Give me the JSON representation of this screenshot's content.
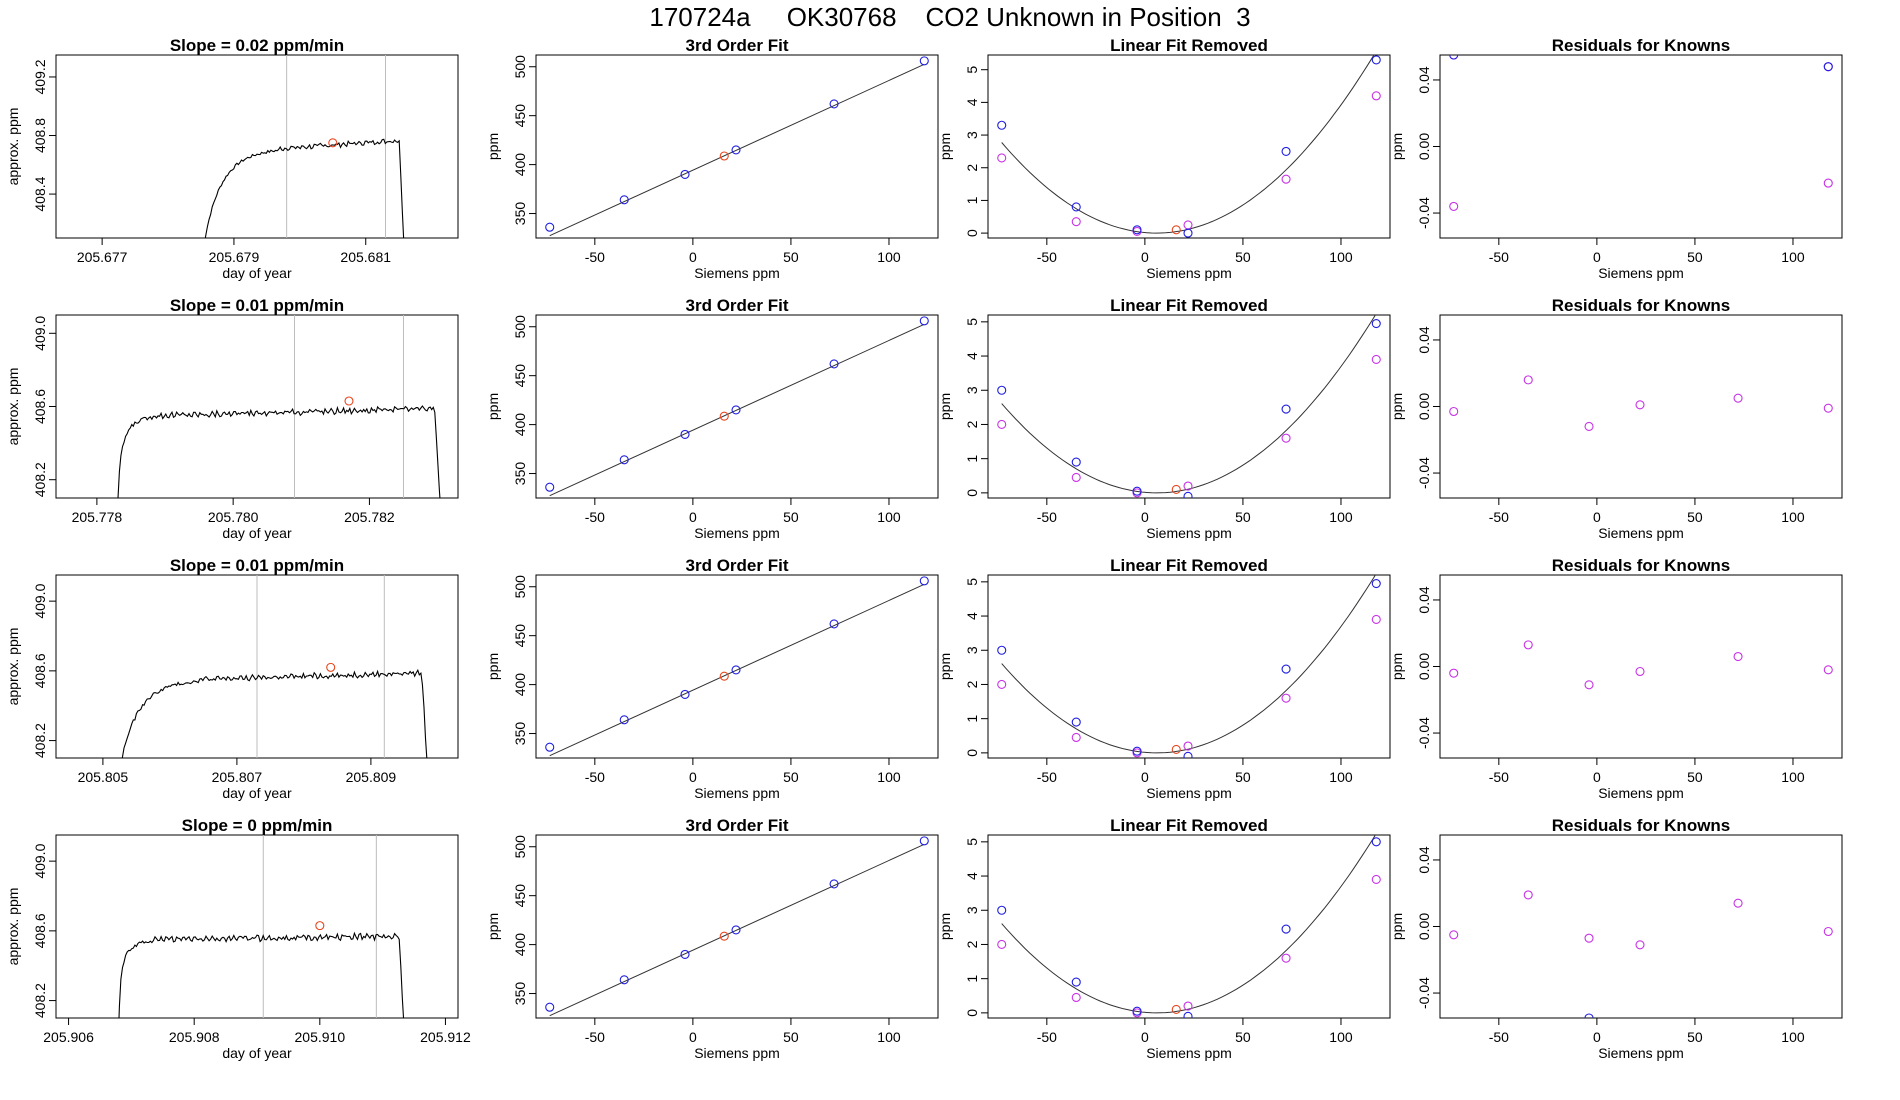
{
  "header": {
    "title": "170724a     OK30768    CO2 Unknown in Position  3"
  },
  "colors": {
    "axis": "#000000",
    "line": "#000000",
    "gridline": "#bdbdbd",
    "unknown_point": "#e8461e",
    "known_point": "#1f1fe0",
    "residual_point": "#c832e6",
    "fit_line": "#333333"
  },
  "chart_data": [
    {
      "type": "line",
      "row": 0,
      "col": 0,
      "title": "Slope =  0.02  ppm/min",
      "xlabel": "day of year",
      "ylabel": "approx. ppm",
      "xlim": [
        205.6763,
        205.6824
      ],
      "ylim": [
        408.1,
        409.35
      ],
      "xticks": [
        205.677,
        205.679,
        205.681
      ],
      "xtick_labels": [
        "205.677",
        "205.679",
        "205.681"
      ],
      "yticks": [
        408.4,
        408.8,
        409.2
      ],
      "ytick_labels": [
        "408.4",
        "408.8",
        "409.2"
      ],
      "vlines": [
        205.6798,
        205.6813
      ],
      "trace": {
        "start_x": 205.6785,
        "plateau_x": 205.6797,
        "end_x": 205.6816,
        "base": 408.1,
        "plateau": 408.76,
        "slope_total": 0.06,
        "rise_shape": 0.9
      },
      "marker": {
        "x": 205.6805,
        "y": 408.75
      }
    },
    {
      "type": "scatter",
      "row": 0,
      "col": 1,
      "title": "3rd Order Fit",
      "xlabel": "Siemens ppm",
      "ylabel": "ppm",
      "xlim": [
        -80,
        125
      ],
      "ylim": [
        325,
        512
      ],
      "xticks": [
        -50,
        0,
        50,
        100
      ],
      "xtick_labels": [
        "-50",
        "0",
        "50",
        "100"
      ],
      "yticks": [
        350,
        400,
        450,
        500
      ],
      "ytick_labels": [
        "350",
        "400",
        "450",
        "500"
      ],
      "fit_line": {
        "slope": 0.9167,
        "intercept": 394.3
      },
      "knowns": [
        [
          -73,
          336
        ],
        [
          -35,
          364
        ],
        [
          -4,
          390
        ],
        [
          22,
          415
        ],
        [
          72,
          462
        ],
        [
          118,
          506
        ]
      ],
      "unknown": [
        16,
        408.8
      ]
    },
    {
      "type": "scatter",
      "row": 0,
      "col": 2,
      "title": "Linear Fit Removed",
      "xlabel": "Siemens ppm",
      "ylabel": "ppm",
      "xlim": [
        -80,
        125
      ],
      "ylim": [
        -0.15,
        5.45
      ],
      "xticks": [
        -50,
        0,
        50,
        100
      ],
      "xtick_labels": [
        "-50",
        "0",
        "50",
        "100"
      ],
      "yticks": [
        0,
        1,
        2,
        3,
        4,
        5
      ],
      "ytick_labels": [
        "0",
        "1",
        "2",
        "3",
        "4",
        "5"
      ],
      "curve": {
        "a": 0.000444,
        "h": 6,
        "k": 0,
        "x0": -73,
        "x1": 118
      },
      "knowns": [
        [
          -73,
          3.3
        ],
        [
          -35,
          0.8
        ],
        [
          -4,
          0.1
        ],
        [
          22,
          0.0
        ],
        [
          72,
          2.5
        ],
        [
          118,
          5.3
        ]
      ],
      "knowns_magenta": [
        [
          -73,
          2.3
        ],
        [
          -35,
          0.35
        ],
        [
          -4,
          0.05
        ],
        [
          22,
          0.25
        ],
        [
          72,
          1.65
        ],
        [
          118,
          4.2
        ]
      ],
      "unknown": [
        16,
        0.1
      ]
    },
    {
      "type": "scatter",
      "row": 0,
      "col": 3,
      "title": "Residuals for Knowns",
      "xlabel": "Siemens ppm",
      "ylabel": "ppm",
      "xlim": [
        -80,
        125
      ],
      "ylim": [
        -0.055,
        0.055
      ],
      "xticks": [
        -50,
        0,
        50,
        100
      ],
      "xtick_labels": [
        "-50",
        "0",
        "50",
        "100"
      ],
      "yticks": [
        -0.04,
        0.0,
        0.04
      ],
      "ytick_labels": [
        "-0.04",
        "0.00",
        "0.04"
      ],
      "points": [
        [
          -73,
          0.055
        ],
        [
          -73,
          -0.036
        ],
        [
          118,
          0.048
        ],
        [
          118,
          -0.022
        ]
      ],
      "blue_points": [
        [
          -73,
          0.055
        ],
        [
          118,
          0.048
        ]
      ]
    },
    {
      "type": "line",
      "row": 1,
      "col": 0,
      "title": "Slope =  0.01  ppm/min",
      "xlabel": "day of year",
      "ylabel": "approx. ppm",
      "xlim": [
        205.7774,
        205.7833
      ],
      "ylim": [
        408.1,
        409.1
      ],
      "xticks": [
        205.778,
        205.78,
        205.782
      ],
      "xtick_labels": [
        "205.778",
        "205.780",
        "205.782"
      ],
      "yticks": [
        408.2,
        408.6,
        409.0
      ],
      "ytick_labels": [
        "408.2",
        "408.6",
        "409.0"
      ],
      "vlines": [
        205.7809,
        205.7825
      ],
      "trace": {
        "start_x": 205.7783,
        "plateau_x": 205.7788,
        "end_x": 205.7831,
        "base": 408.1,
        "plateau": 408.6,
        "slope_total": 0.04,
        "rise_shape": 0.6
      },
      "marker": {
        "x": 205.7817,
        "y": 408.63
      }
    },
    {
      "type": "scatter",
      "row": 1,
      "col": 1,
      "title": "3rd Order Fit",
      "xlabel": "Siemens ppm",
      "ylabel": "ppm",
      "xlim": [
        -80,
        125
      ],
      "ylim": [
        325,
        512
      ],
      "xticks": [
        -50,
        0,
        50,
        100
      ],
      "xtick_labels": [
        "-50",
        "0",
        "50",
        "100"
      ],
      "yticks": [
        350,
        400,
        450,
        500
      ],
      "ytick_labels": [
        "350",
        "400",
        "450",
        "500"
      ],
      "fit_line": {
        "slope": 0.9167,
        "intercept": 394.3
      },
      "knowns": [
        [
          -73,
          336
        ],
        [
          -35,
          364
        ],
        [
          -4,
          390
        ],
        [
          22,
          415
        ],
        [
          72,
          462
        ],
        [
          118,
          506
        ]
      ],
      "unknown": [
        16,
        408.6
      ]
    },
    {
      "type": "scatter",
      "row": 1,
      "col": 2,
      "title": "Linear Fit Removed",
      "xlabel": "Siemens ppm",
      "ylabel": "ppm",
      "xlim": [
        -80,
        125
      ],
      "ylim": [
        -0.15,
        5.2
      ],
      "xticks": [
        -50,
        0,
        50,
        100
      ],
      "xtick_labels": [
        "-50",
        "0",
        "50",
        "100"
      ],
      "yticks": [
        0,
        1,
        2,
        3,
        4,
        5
      ],
      "ytick_labels": [
        "0",
        "1",
        "2",
        "3",
        "4",
        "5"
      ],
      "curve": {
        "a": 0.000418,
        "h": 6,
        "k": 0,
        "x0": -73,
        "x1": 118
      },
      "knowns": [
        [
          -73,
          3.0
        ],
        [
          -35,
          0.9
        ],
        [
          -4,
          0.05
        ],
        [
          22,
          -0.1
        ],
        [
          72,
          2.45
        ],
        [
          118,
          4.95
        ]
      ],
      "knowns_magenta": [
        [
          -73,
          2.0
        ],
        [
          -35,
          0.45
        ],
        [
          -4,
          0.0
        ],
        [
          22,
          0.2
        ],
        [
          72,
          1.6
        ],
        [
          118,
          3.9
        ]
      ],
      "unknown": [
        16,
        0.1
      ]
    },
    {
      "type": "scatter",
      "row": 1,
      "col": 3,
      "title": "Residuals for Knowns",
      "xlabel": "Siemens ppm",
      "ylabel": "ppm",
      "xlim": [
        -80,
        125
      ],
      "ylim": [
        -0.055,
        0.055
      ],
      "xticks": [
        -50,
        0,
        50,
        100
      ],
      "xtick_labels": [
        "-50",
        "0",
        "50",
        "100"
      ],
      "yticks": [
        -0.04,
        0.0,
        0.04
      ],
      "ytick_labels": [
        "-0.04",
        "0.00",
        "0.04"
      ],
      "points": [
        [
          -73,
          -0.003
        ],
        [
          -35,
          0.016
        ],
        [
          -4,
          -0.012
        ],
        [
          22,
          0.001
        ],
        [
          72,
          0.005
        ],
        [
          118,
          -0.001
        ]
      ],
      "blue_points": []
    },
    {
      "type": "line",
      "row": 2,
      "col": 0,
      "title": "Slope =  0.01  ppm/min",
      "xlabel": "day of year",
      "ylabel": "approx. ppm",
      "xlim": [
        205.8043,
        205.8103
      ],
      "ylim": [
        408.1,
        409.15
      ],
      "xticks": [
        205.805,
        205.807,
        205.809
      ],
      "xtick_labels": [
        "205.805",
        "205.807",
        "205.809"
      ],
      "yticks": [
        408.2,
        408.6,
        409.0
      ],
      "ytick_labels": [
        "408.2",
        "408.6",
        "409.0"
      ],
      "vlines": [
        205.8073,
        205.8092
      ],
      "trace": {
        "start_x": 205.8052,
        "plateau_x": 205.8064,
        "end_x": 205.8099,
        "base": 408.1,
        "plateau": 408.6,
        "slope_total": 0.04,
        "rise_shape": 0.9
      },
      "marker": {
        "x": 205.8084,
        "y": 408.62
      }
    },
    {
      "type": "scatter",
      "row": 2,
      "col": 1,
      "title": "3rd Order Fit",
      "xlabel": "Siemens ppm",
      "ylabel": "ppm",
      "xlim": [
        -80,
        125
      ],
      "ylim": [
        325,
        512
      ],
      "xticks": [
        -50,
        0,
        50,
        100
      ],
      "xtick_labels": [
        "-50",
        "0",
        "50",
        "100"
      ],
      "yticks": [
        350,
        400,
        450,
        500
      ],
      "ytick_labels": [
        "350",
        "400",
        "450",
        "500"
      ],
      "fit_line": {
        "slope": 0.9167,
        "intercept": 394.3
      },
      "knowns": [
        [
          -73,
          336
        ],
        [
          -35,
          364
        ],
        [
          -4,
          390
        ],
        [
          22,
          415
        ],
        [
          72,
          462
        ],
        [
          118,
          506
        ]
      ],
      "unknown": [
        16,
        408.6
      ]
    },
    {
      "type": "scatter",
      "row": 2,
      "col": 2,
      "title": "Linear Fit Removed",
      "xlabel": "Siemens ppm",
      "ylabel": "ppm",
      "xlim": [
        -80,
        125
      ],
      "ylim": [
        -0.15,
        5.2
      ],
      "xticks": [
        -50,
        0,
        50,
        100
      ],
      "xtick_labels": [
        "-50",
        "0",
        "50",
        "100"
      ],
      "yticks": [
        0,
        1,
        2,
        3,
        4,
        5
      ],
      "ytick_labels": [
        "0",
        "1",
        "2",
        "3",
        "4",
        "5"
      ],
      "curve": {
        "a": 0.000418,
        "h": 6,
        "k": 0,
        "x0": -73,
        "x1": 118
      },
      "knowns": [
        [
          -73,
          3.0
        ],
        [
          -35,
          0.9
        ],
        [
          -4,
          0.05
        ],
        [
          22,
          -0.1
        ],
        [
          72,
          2.45
        ],
        [
          118,
          4.95
        ]
      ],
      "knowns_magenta": [
        [
          -73,
          2.0
        ],
        [
          -35,
          0.45
        ],
        [
          -4,
          0.0
        ],
        [
          22,
          0.2
        ],
        [
          72,
          1.6
        ],
        [
          118,
          3.9
        ]
      ],
      "unknown": [
        16,
        0.1
      ]
    },
    {
      "type": "scatter",
      "row": 2,
      "col": 3,
      "title": "Residuals for Knowns",
      "xlabel": "Siemens ppm",
      "ylabel": "ppm",
      "xlim": [
        -80,
        125
      ],
      "ylim": [
        -0.055,
        0.055
      ],
      "xticks": [
        -50,
        0,
        50,
        100
      ],
      "xtick_labels": [
        "-50",
        "0",
        "50",
        "100"
      ],
      "yticks": [
        -0.04,
        0.0,
        0.04
      ],
      "ytick_labels": [
        "-0.04",
        "0.00",
        "0.04"
      ],
      "points": [
        [
          -73,
          -0.004
        ],
        [
          -35,
          0.013
        ],
        [
          -4,
          -0.011
        ],
        [
          22,
          -0.003
        ],
        [
          72,
          0.006
        ],
        [
          118,
          -0.002
        ]
      ],
      "blue_points": []
    },
    {
      "type": "line",
      "row": 3,
      "col": 0,
      "title": "Slope =  0  ppm/min",
      "xlabel": "day of year",
      "ylabel": "approx. ppm",
      "xlim": [
        205.9058,
        205.9122
      ],
      "ylim": [
        408.1,
        409.15
      ],
      "xticks": [
        205.906,
        205.908,
        205.91,
        205.912
      ],
      "xtick_labels": [
        "205.906",
        "205.908",
        "205.910",
        "205.912"
      ],
      "yticks": [
        408.2,
        408.6,
        409.0
      ],
      "ytick_labels": [
        "408.2",
        "408.6",
        "409.0"
      ],
      "vlines": [
        205.9091,
        205.9109
      ],
      "trace": {
        "start_x": 205.9068,
        "plateau_x": 205.9073,
        "end_x": 205.9114,
        "base": 408.1,
        "plateau": 408.6,
        "slope_total": 0.02,
        "rise_shape": 0.5
      },
      "marker": {
        "x": 205.91,
        "y": 408.63
      }
    },
    {
      "type": "scatter",
      "row": 3,
      "col": 1,
      "title": "3rd Order Fit",
      "xlabel": "Siemens ppm",
      "ylabel": "ppm",
      "xlim": [
        -80,
        125
      ],
      "ylim": [
        325,
        512
      ],
      "xticks": [
        -50,
        0,
        50,
        100
      ],
      "xtick_labels": [
        "-50",
        "0",
        "50",
        "100"
      ],
      "yticks": [
        350,
        400,
        450,
        500
      ],
      "ytick_labels": [
        "350",
        "400",
        "450",
        "500"
      ],
      "fit_line": {
        "slope": 0.9167,
        "intercept": 394.3
      },
      "knowns": [
        [
          -73,
          336
        ],
        [
          -35,
          364
        ],
        [
          -4,
          390
        ],
        [
          22,
          415
        ],
        [
          72,
          462
        ],
        [
          118,
          506
        ]
      ],
      "unknown": [
        16,
        408.6
      ]
    },
    {
      "type": "scatter",
      "row": 3,
      "col": 2,
      "title": "Linear Fit Removed",
      "xlabel": "Siemens ppm",
      "ylabel": "ppm",
      "xlim": [
        -80,
        125
      ],
      "ylim": [
        -0.15,
        5.2
      ],
      "xticks": [
        -50,
        0,
        50,
        100
      ],
      "xtick_labels": [
        "-50",
        "0",
        "50",
        "100"
      ],
      "yticks": [
        0,
        1,
        2,
        3,
        4,
        5
      ],
      "ytick_labels": [
        "0",
        "1",
        "2",
        "3",
        "4",
        "5"
      ],
      "curve": {
        "a": 0.000418,
        "h": 6,
        "k": 0,
        "x0": -73,
        "x1": 118
      },
      "knowns": [
        [
          -73,
          3.0
        ],
        [
          -35,
          0.9
        ],
        [
          -4,
          0.05
        ],
        [
          22,
          -0.1
        ],
        [
          72,
          2.45
        ],
        [
          118,
          5.0
        ]
      ],
      "knowns_magenta": [
        [
          -73,
          2.0
        ],
        [
          -35,
          0.45
        ],
        [
          -4,
          0.0
        ],
        [
          22,
          0.2
        ],
        [
          72,
          1.6
        ],
        [
          118,
          3.9
        ]
      ],
      "unknown": [
        16,
        0.1
      ]
    },
    {
      "type": "scatter",
      "row": 3,
      "col": 3,
      "title": "Residuals for Knowns",
      "xlabel": "Siemens ppm",
      "ylabel": "ppm",
      "xlim": [
        -80,
        125
      ],
      "ylim": [
        -0.055,
        0.055
      ],
      "xticks": [
        -50,
        0,
        50,
        100
      ],
      "xtick_labels": [
        "-50",
        "0",
        "50",
        "100"
      ],
      "yticks": [
        -0.04,
        0.0,
        0.04
      ],
      "ytick_labels": [
        "-0.04",
        "0.00",
        "0.04"
      ],
      "points": [
        [
          -73,
          -0.005
        ],
        [
          -35,
          0.019
        ],
        [
          -4,
          -0.007
        ],
        [
          22,
          -0.011
        ],
        [
          72,
          0.014
        ],
        [
          118,
          -0.003
        ]
      ],
      "blue_points": [
        [
          -4,
          -0.055
        ]
      ]
    }
  ]
}
